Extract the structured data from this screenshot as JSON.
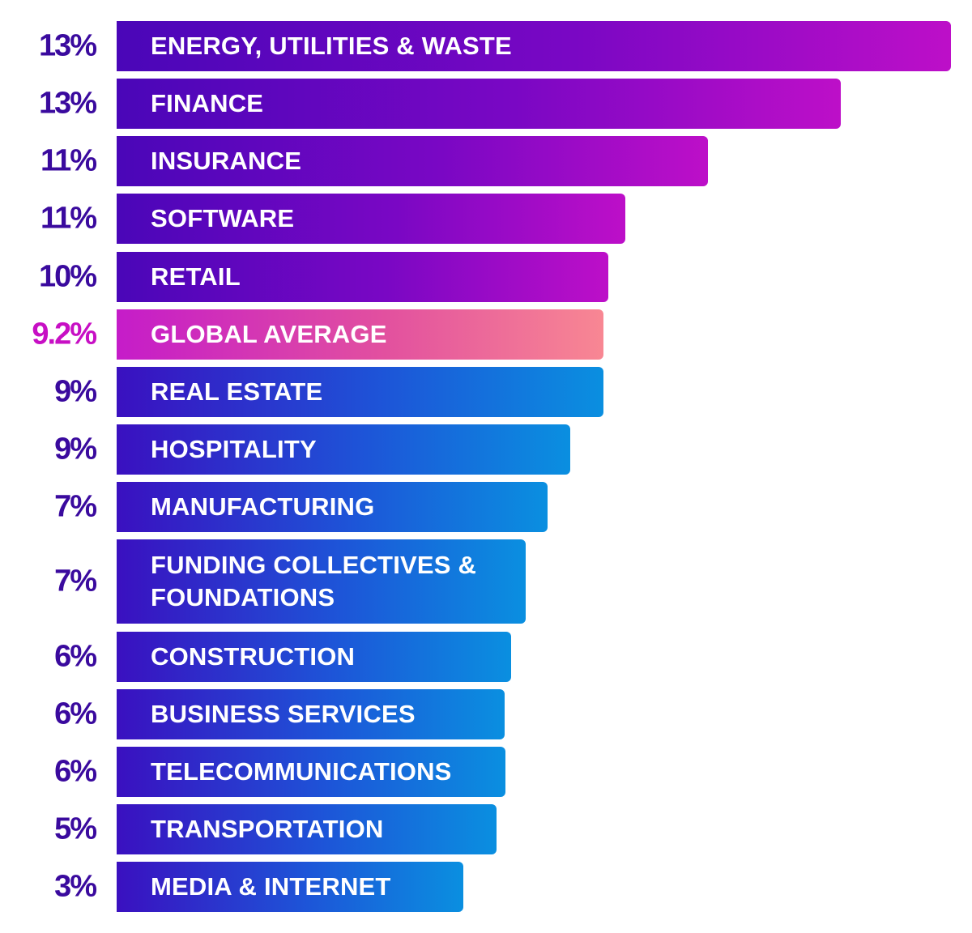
{
  "chart_data": {
    "type": "bar",
    "orientation": "horizontal",
    "title": "",
    "xlabel": "",
    "ylabel": "",
    "categories": [
      "ENERGY, UTILITIES & WASTE",
      "FINANCE",
      "INSURANCE",
      "SOFTWARE",
      "RETAIL",
      "GLOBAL AVERAGE",
      "REAL ESTATE",
      "HOSPITALITY",
      "MANUFACTURING",
      "FUNDING COLLECTIVES & FOUNDATIONS",
      "CONSTRUCTION",
      "BUSINESS SERVICES",
      "TELECOMMUNICATIONS",
      "TRANSPORTATION",
      "MEDIA & INTERNET"
    ],
    "value_labels": [
      "13%",
      "13%",
      "11%",
      "11%",
      "10%",
      "9.2%",
      "9%",
      "9%",
      "7%",
      "7%",
      "6%",
      "6%",
      "6%",
      "5%",
      "3%"
    ],
    "values": [
      13,
      13,
      11,
      11,
      10,
      9.2,
      9,
      9,
      7,
      7,
      6,
      6,
      6,
      5,
      3
    ],
    "highlight_category": "GLOBAL AVERAGE",
    "colors": {
      "above_average": "#7a07c4",
      "average": "#e2509f",
      "below_average": "#1d55d8",
      "label_text": "#3a0a9e",
      "average_label_text": "#c70fc4"
    }
  }
}
